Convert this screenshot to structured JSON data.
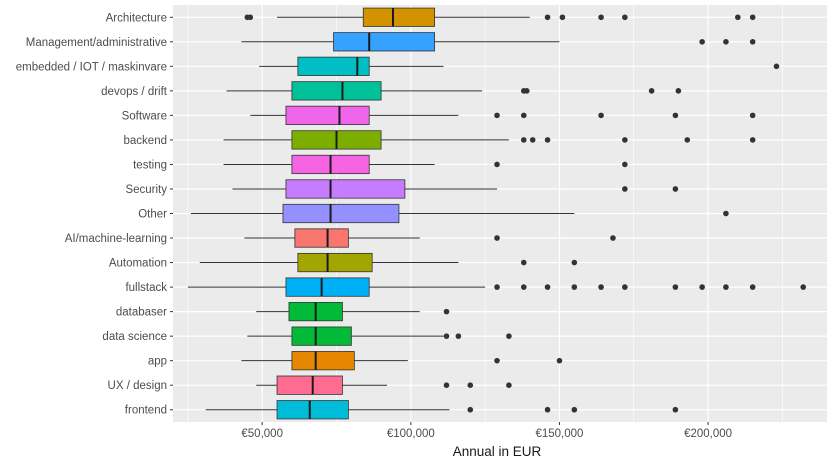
{
  "chart_data": {
    "type": "boxplot",
    "orientation": "horizontal",
    "title": "",
    "xlabel": "Annual in EUR",
    "ylabel": "",
    "xlim": [
      20000,
      240000
    ],
    "x_ticks": [
      {
        "value": 50000,
        "label": "€50,000"
      },
      {
        "value": 100000,
        "label": "€100,000"
      },
      {
        "value": 150000,
        "label": "€150,000"
      },
      {
        "value": 200000,
        "label": "€200,000"
      }
    ],
    "grid": true,
    "legend": "none",
    "categories": [
      {
        "name": "Architecture",
        "color": "#D39200",
        "whisker_low": 55000,
        "q1": 84000,
        "median": 94000,
        "q3": 108000,
        "whisker_high": 140000,
        "outliers": [
          45000,
          46000,
          146000,
          151000,
          164000,
          172000,
          210000,
          215000
        ]
      },
      {
        "name": "Management/administrative",
        "color": "#35A2FF",
        "whisker_low": 43000,
        "q1": 74000,
        "median": 86000,
        "q3": 108000,
        "whisker_high": 150000,
        "outliers": [
          198000,
          206000,
          215000
        ]
      },
      {
        "name": "embedded / IOT / maskinvare",
        "color": "#00BFC4",
        "whisker_low": 49000,
        "q1": 62000,
        "median": 82000,
        "q3": 86000,
        "whisker_high": 111000,
        "outliers": [
          223000
        ]
      },
      {
        "name": "devops / drift",
        "color": "#00C19A",
        "whisker_low": 38000,
        "q1": 60000,
        "median": 77000,
        "q3": 90000,
        "whisker_high": 124000,
        "outliers": [
          138000,
          139000,
          181000,
          190000
        ]
      },
      {
        "name": "Software",
        "color": "#F066EA",
        "whisker_low": 46000,
        "q1": 58000,
        "median": 76000,
        "q3": 86000,
        "whisker_high": 116000,
        "outliers": [
          129000,
          138000,
          164000,
          189000,
          215000
        ]
      },
      {
        "name": "backend",
        "color": "#7CAE00",
        "whisker_low": 37000,
        "q1": 60000,
        "median": 75000,
        "q3": 90000,
        "whisker_high": 133000,
        "outliers": [
          138000,
          141000,
          146000,
          172000,
          193000,
          215000
        ]
      },
      {
        "name": "testing",
        "color": "#F564E3",
        "whisker_low": 37000,
        "q1": 60000,
        "median": 73000,
        "q3": 86000,
        "whisker_high": 108000,
        "outliers": [
          129000,
          172000
        ]
      },
      {
        "name": "Security",
        "color": "#C77CFF",
        "whisker_low": 40000,
        "q1": 58000,
        "median": 73000,
        "q3": 98000,
        "whisker_high": 129000,
        "outliers": [
          172000,
          189000
        ]
      },
      {
        "name": "Other",
        "color": "#9590FF",
        "whisker_low": 26000,
        "q1": 57000,
        "median": 73000,
        "q3": 96000,
        "whisker_high": 155000,
        "outliers": [
          206000
        ]
      },
      {
        "name": "AI/machine-learning",
        "color": "#F8766D",
        "whisker_low": 44000,
        "q1": 61000,
        "median": 72000,
        "q3": 79000,
        "whisker_high": 103000,
        "outliers": [
          129000,
          168000
        ]
      },
      {
        "name": "Automation",
        "color": "#A3A500",
        "whisker_low": 29000,
        "q1": 62000,
        "median": 72000,
        "q3": 87000,
        "whisker_high": 116000,
        "outliers": [
          138000,
          155000
        ]
      },
      {
        "name": "fullstack",
        "color": "#00B0F6",
        "whisker_low": 25000,
        "q1": 58000,
        "median": 70000,
        "q3": 86000,
        "whisker_high": 125000,
        "outliers": [
          129000,
          138000,
          146000,
          155000,
          164000,
          172000,
          189000,
          198000,
          206000,
          215000,
          232000
        ]
      },
      {
        "name": "databaser",
        "color": "#00BA38",
        "whisker_low": 48000,
        "q1": 59000,
        "median": 68000,
        "q3": 77000,
        "whisker_high": 103000,
        "outliers": [
          112000
        ]
      },
      {
        "name": "data science",
        "color": "#00BA38",
        "whisker_low": 45000,
        "q1": 60000,
        "median": 68000,
        "q3": 80000,
        "whisker_high": 111000,
        "outliers": [
          112000,
          116000,
          133000
        ]
      },
      {
        "name": "app",
        "color": "#E58700",
        "whisker_low": 43000,
        "q1": 60000,
        "median": 68000,
        "q3": 81000,
        "whisker_high": 99000,
        "outliers": [
          129000,
          150000
        ]
      },
      {
        "name": "UX / design",
        "color": "#FF6C91",
        "whisker_low": 48000,
        "q1": 55000,
        "median": 67000,
        "q3": 77000,
        "whisker_high": 92000,
        "outliers": [
          112000,
          120000,
          133000
        ]
      },
      {
        "name": "frontend",
        "color": "#00BCD8",
        "whisker_low": 31000,
        "q1": 55000,
        "median": 66000,
        "q3": 79000,
        "whisker_high": 113000,
        "outliers": [
          120000,
          146000,
          155000,
          189000
        ]
      }
    ]
  }
}
